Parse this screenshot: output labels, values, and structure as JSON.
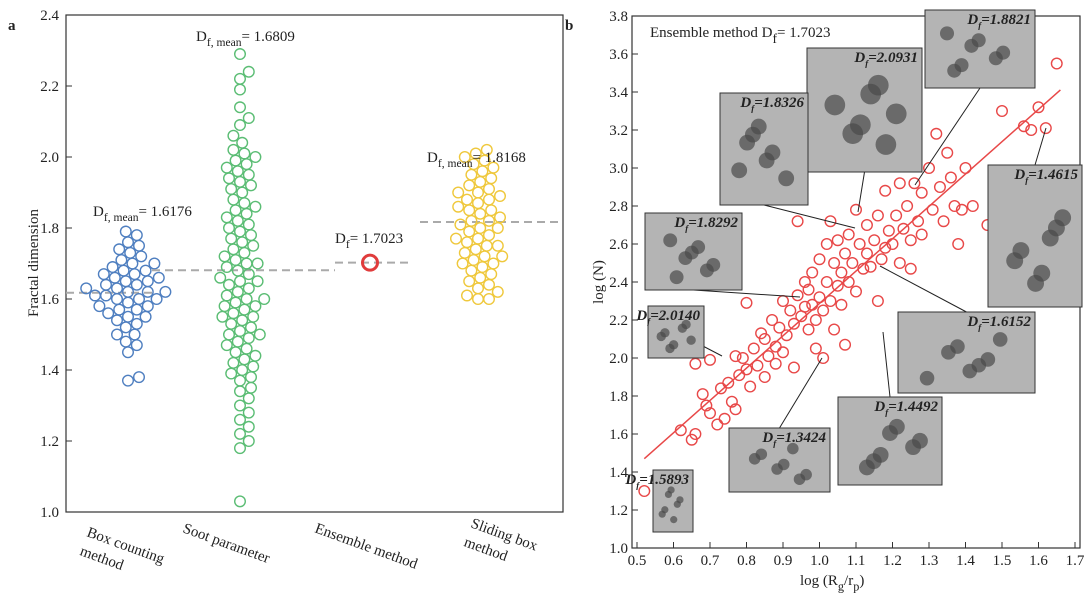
{
  "chart_data": [
    {
      "type": "strip",
      "panel_label": "a",
      "ylabel": "Fractal dimension",
      "ylim": [
        1.0,
        2.4
      ],
      "yticks": [
        {
          "value": 1,
          "label": "1.0"
        },
        1.2,
        1.4,
        1.6,
        1.8,
        {
          "value": 2,
          "label": "2.0"
        },
        2.2,
        2.4
      ],
      "groups": [
        {
          "label_lines": [
            "Box counting",
            "method"
          ],
          "color": "#4f7fc0",
          "values": [
            1.37,
            1.38,
            1.45,
            1.47,
            1.48,
            1.5,
            1.5,
            1.52,
            1.53,
            1.54,
            1.55,
            1.55,
            1.56,
            1.57,
            1.57,
            1.58,
            1.58,
            1.59,
            1.6,
            1.6,
            1.6,
            1.61,
            1.61,
            1.62,
            1.62,
            1.62,
            1.63,
            1.63,
            1.64,
            1.64,
            1.65,
            1.65,
            1.66,
            1.66,
            1.67,
            1.67,
            1.68,
            1.68,
            1.69,
            1.7,
            1.7,
            1.71,
            1.72,
            1.73,
            1.74,
            1.75,
            1.76,
            1.78,
            1.79
          ],
          "mean": 1.6176,
          "mean_label": {
            "base": "D",
            "sub": "f, mean",
            "value_text": "= 1.6176"
          }
        },
        {
          "label_lines": [
            "Soot parameter"
          ],
          "color": "#5bbd74",
          "values": [
            1.03,
            1.18,
            1.2,
            1.22,
            1.24,
            1.26,
            1.28,
            1.3,
            1.32,
            1.34,
            1.35,
            1.37,
            1.38,
            1.39,
            1.4,
            1.41,
            1.42,
            1.43,
            1.44,
            1.45,
            1.46,
            1.47,
            1.48,
            1.49,
            1.5,
            1.5,
            1.51,
            1.52,
            1.53,
            1.54,
            1.55,
            1.55,
            1.56,
            1.57,
            1.58,
            1.58,
            1.59,
            1.6,
            1.6,
            1.61,
            1.62,
            1.63,
            1.64,
            1.65,
            1.65,
            1.66,
            1.67,
            1.68,
            1.69,
            1.7,
            1.7,
            1.71,
            1.72,
            1.73,
            1.74,
            1.75,
            1.76,
            1.77,
            1.78,
            1.79,
            1.8,
            1.81,
            1.82,
            1.83,
            1.84,
            1.85,
            1.86,
            1.87,
            1.88,
            1.9,
            1.91,
            1.92,
            1.93,
            1.94,
            1.95,
            1.96,
            1.97,
            1.98,
            1.99,
            2.0,
            2.01,
            2.02,
            2.04,
            2.06,
            2.09,
            2.11,
            2.14,
            2.19,
            2.22,
            2.24,
            2.29
          ],
          "mean": 1.6809,
          "mean_label": {
            "base": "D",
            "sub": "f, mean",
            "value_text": "= 1.6809"
          }
        },
        {
          "label_lines": [
            "Ensemble method"
          ],
          "color": "#e03c3c",
          "values": [
            1.7023
          ],
          "mean": 1.7023,
          "mean_label": {
            "base": "D",
            "sub": "f",
            "value_text": "= 1.7023"
          }
        },
        {
          "label_lines": [
            "Sliding box",
            "method"
          ],
          "color": "#efc83c",
          "values": [
            1.6,
            1.6,
            1.61,
            1.62,
            1.63,
            1.64,
            1.65,
            1.66,
            1.67,
            1.68,
            1.69,
            1.7,
            1.7,
            1.71,
            1.72,
            1.72,
            1.73,
            1.74,
            1.75,
            1.75,
            1.76,
            1.77,
            1.77,
            1.78,
            1.79,
            1.8,
            1.8,
            1.81,
            1.82,
            1.82,
            1.83,
            1.84,
            1.85,
            1.85,
            1.86,
            1.87,
            1.88,
            1.88,
            1.89,
            1.9,
            1.9,
            1.91,
            1.92,
            1.93,
            1.94,
            1.95,
            1.96,
            1.97,
            1.98,
            1.99,
            2.0,
            2.01,
            2.02
          ],
          "mean": 1.8168,
          "mean_label": {
            "base": "D",
            "sub": "f, mean",
            "value_text": "= 1.8168"
          }
        }
      ]
    },
    {
      "type": "scatter",
      "panel_label": "b",
      "annotation": {
        "text": "Ensemble method D",
        "sub": "f",
        "value_text": "= 1.7023"
      },
      "ylabel": "log (N)",
      "xlabel_parts": [
        "log (R",
        "g",
        "/r",
        "p",
        ")"
      ],
      "xlim": [
        0.5,
        1.7
      ],
      "xticks": [
        0.5,
        0.6,
        0.7,
        0.8,
        0.9,
        {
          "value": 1,
          "label": "1.0"
        },
        1.1,
        1.2,
        1.3,
        1.4,
        1.5,
        1.6,
        1.7
      ],
      "ylim": [
        1.0,
        3.8
      ],
      "yticks": [
        {
          "value": 1,
          "label": "1.0"
        },
        1.2,
        1.4,
        1.6,
        1.8,
        {
          "value": 2,
          "label": "2.0"
        },
        2.2,
        2.4,
        2.6,
        2.8,
        {
          "value": 3,
          "label": "3.0"
        },
        3.2,
        3.4,
        3.6,
        3.8
      ],
      "color": "#e84848",
      "x": [
        0.52,
        0.62,
        0.65,
        0.66,
        0.66,
        0.68,
        0.69,
        0.7,
        0.7,
        0.72,
        0.73,
        0.74,
        0.75,
        0.76,
        0.77,
        0.77,
        0.78,
        0.79,
        0.8,
        0.8,
        0.81,
        0.82,
        0.83,
        0.84,
        0.85,
        0.85,
        0.86,
        0.87,
        0.88,
        0.88,
        0.89,
        0.9,
        0.9,
        0.91,
        0.92,
        0.93,
        0.93,
        0.94,
        0.94,
        0.95,
        0.96,
        0.96,
        0.97,
        0.97,
        0.98,
        0.98,
        0.99,
        0.99,
        1.0,
        1.0,
        1.01,
        1.01,
        1.02,
        1.02,
        1.03,
        1.03,
        1.04,
        1.04,
        1.05,
        1.05,
        1.06,
        1.06,
        1.07,
        1.07,
        1.08,
        1.08,
        1.09,
        1.1,
        1.1,
        1.11,
        1.12,
        1.13,
        1.13,
        1.14,
        1.15,
        1.16,
        1.16,
        1.17,
        1.18,
        1.18,
        1.19,
        1.2,
        1.21,
        1.22,
        1.22,
        1.23,
        1.24,
        1.25,
        1.25,
        1.26,
        1.27,
        1.28,
        1.28,
        1.3,
        1.31,
        1.32,
        1.33,
        1.34,
        1.35,
        1.36,
        1.37,
        1.38,
        1.39,
        1.4,
        1.42,
        1.46,
        1.5,
        1.56,
        1.58,
        1.6,
        1.62,
        1.65
      ],
      "values": [
        1.3,
        1.62,
        1.57,
        1.6,
        1.97,
        1.81,
        1.75,
        1.71,
        1.99,
        1.65,
        1.84,
        1.68,
        1.87,
        1.77,
        1.73,
        2.01,
        1.91,
        2.0,
        1.94,
        2.29,
        1.85,
        2.05,
        1.96,
        2.13,
        1.9,
        2.1,
        2.01,
        2.2,
        2.06,
        1.97,
        2.16,
        2.03,
        2.3,
        2.12,
        2.25,
        1.95,
        2.18,
        2.72,
        2.33,
        2.22,
        2.4,
        2.27,
        2.15,
        2.36,
        2.28,
        2.45,
        2.2,
        2.05,
        2.32,
        2.52,
        2.0,
        2.25,
        2.4,
        2.6,
        2.3,
        2.72,
        2.5,
        2.15,
        2.38,
        2.62,
        2.45,
        2.28,
        2.55,
        2.07,
        2.65,
        2.4,
        2.5,
        2.78,
        2.35,
        2.6,
        2.47,
        2.7,
        2.55,
        2.48,
        2.62,
        2.3,
        2.75,
        2.52,
        2.88,
        2.58,
        2.67,
        2.6,
        2.75,
        2.5,
        2.92,
        2.68,
        2.8,
        2.62,
        2.47,
        2.92,
        2.72,
        2.87,
        2.65,
        3.0,
        2.78,
        3.18,
        2.9,
        2.72,
        3.08,
        2.95,
        2.8,
        2.6,
        2.78,
        3.0,
        2.8,
        2.7,
        3.3,
        3.22,
        3.2,
        3.32,
        3.21,
        3.55
      ],
      "fit": {
        "slope": 1.7023,
        "intercept": 0.585,
        "x_range": [
          0.52,
          1.66
        ]
      },
      "insets": [
        {
          "base": "D",
          "sub": "f",
          "value_text": "=1.8821"
        },
        {
          "base": "D",
          "sub": "f",
          "value_text": "=2.0931"
        },
        {
          "base": "D",
          "sub": "f",
          "value_text": "=1.8326"
        },
        {
          "base": "D",
          "sub": "f",
          "value_text": "=1.4615"
        },
        {
          "base": "D",
          "sub": "f",
          "value_text": "=1.8292"
        },
        {
          "base": "D",
          "sub": "f",
          "value_text": "=2.0140"
        },
        {
          "base": "D",
          "sub": "f",
          "value_text": "=1.6152"
        },
        {
          "base": "D",
          "sub": "f",
          "value_text": "=1.4492"
        },
        {
          "base": "D",
          "sub": "f",
          "value_text": "=1.3424"
        },
        {
          "base": "D",
          "sub": "f",
          "value_text": "=1.5893"
        }
      ]
    }
  ]
}
